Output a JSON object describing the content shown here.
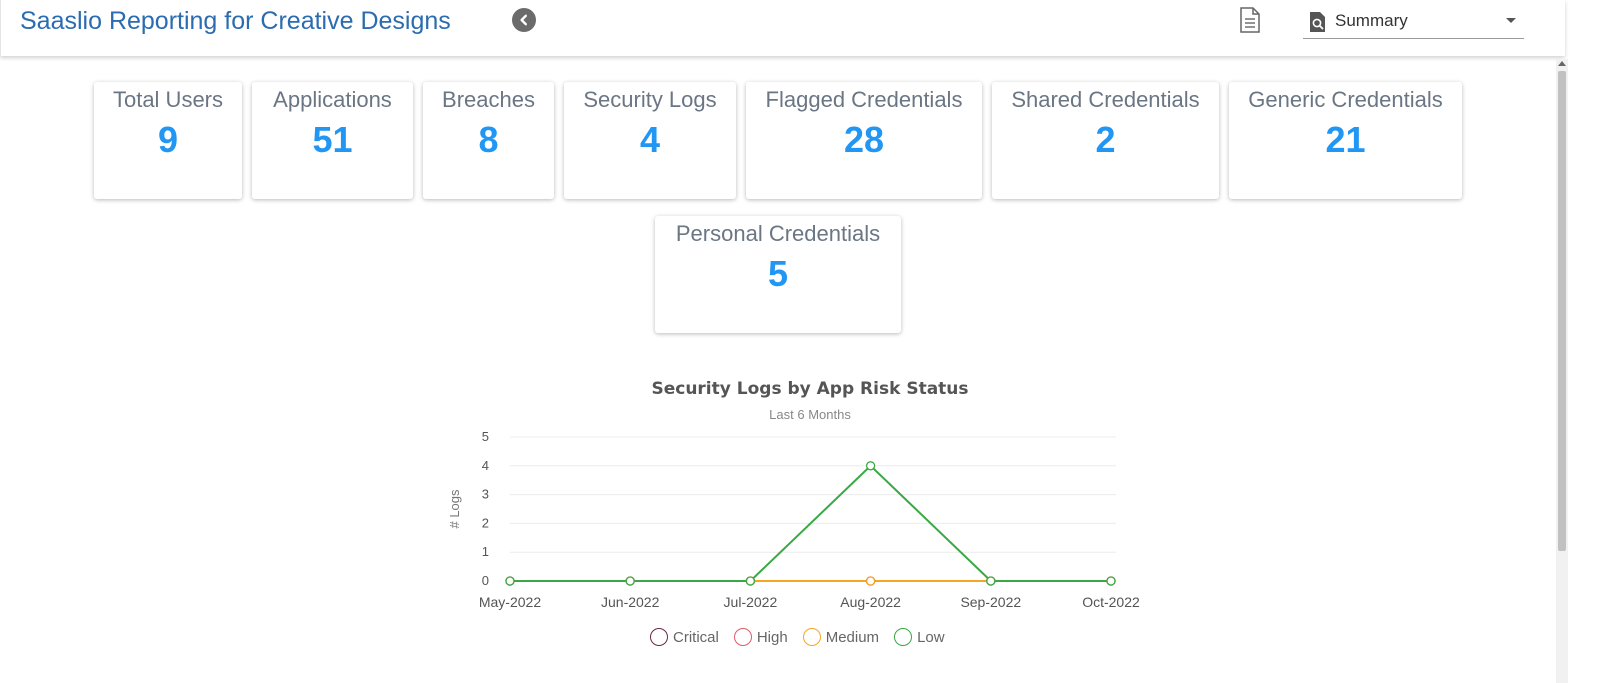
{
  "header": {
    "title": "Saaslio Reporting for Creative Designs",
    "back_icon": "chevron-left-circle-icon",
    "report_icon": "document-icon",
    "view_select": {
      "icon": "search-document-icon",
      "value": "Summary"
    }
  },
  "cards": [
    {
      "id": "total-users",
      "label": "Total Users",
      "value": "9"
    },
    {
      "id": "applications",
      "label": "Applications",
      "value": "51"
    },
    {
      "id": "breaches",
      "label": "Breaches",
      "value": "8"
    },
    {
      "id": "security-logs",
      "label": "Security Logs",
      "value": "4"
    },
    {
      "id": "flagged-credentials",
      "label": "Flagged Credentials",
      "value": "28"
    },
    {
      "id": "shared-credentials",
      "label": "Shared Credentials",
      "value": "2"
    },
    {
      "id": "generic-credentials",
      "label": "Generic Credentials",
      "value": "21"
    },
    {
      "id": "personal-credentials",
      "label": "Personal Credentials",
      "value": "5"
    }
  ],
  "colors": {
    "accent": "#2196f3",
    "title": "#2b6cb0",
    "card_label": "#6b7684"
  },
  "chart_data": {
    "type": "line",
    "title": "Security Logs by App Risk Status",
    "subtitle": "Last 6 Months",
    "ylabel": "# Logs",
    "xlabel": "",
    "categories": [
      "May-2022",
      "Jun-2022",
      "Jul-2022",
      "Aug-2022",
      "Sep-2022",
      "Oct-2022"
    ],
    "ylim": [
      0,
      5
    ],
    "yticks": [
      "0",
      "1",
      "2",
      "3",
      "4",
      "5"
    ],
    "grid": true,
    "legend_position": "bottom",
    "series": [
      {
        "name": "Critical",
        "color": "#6b2a4a",
        "values": [
          0,
          0,
          0,
          0,
          0,
          0
        ]
      },
      {
        "name": "High",
        "color": "#e05b6b",
        "values": [
          0,
          0,
          0,
          0,
          0,
          0
        ]
      },
      {
        "name": "Medium",
        "color": "#f5a623",
        "values": [
          0,
          0,
          0,
          0,
          0,
          0
        ]
      },
      {
        "name": "Low",
        "color": "#3aa845",
        "values": [
          0,
          0,
          0,
          4,
          0,
          0
        ]
      }
    ]
  }
}
